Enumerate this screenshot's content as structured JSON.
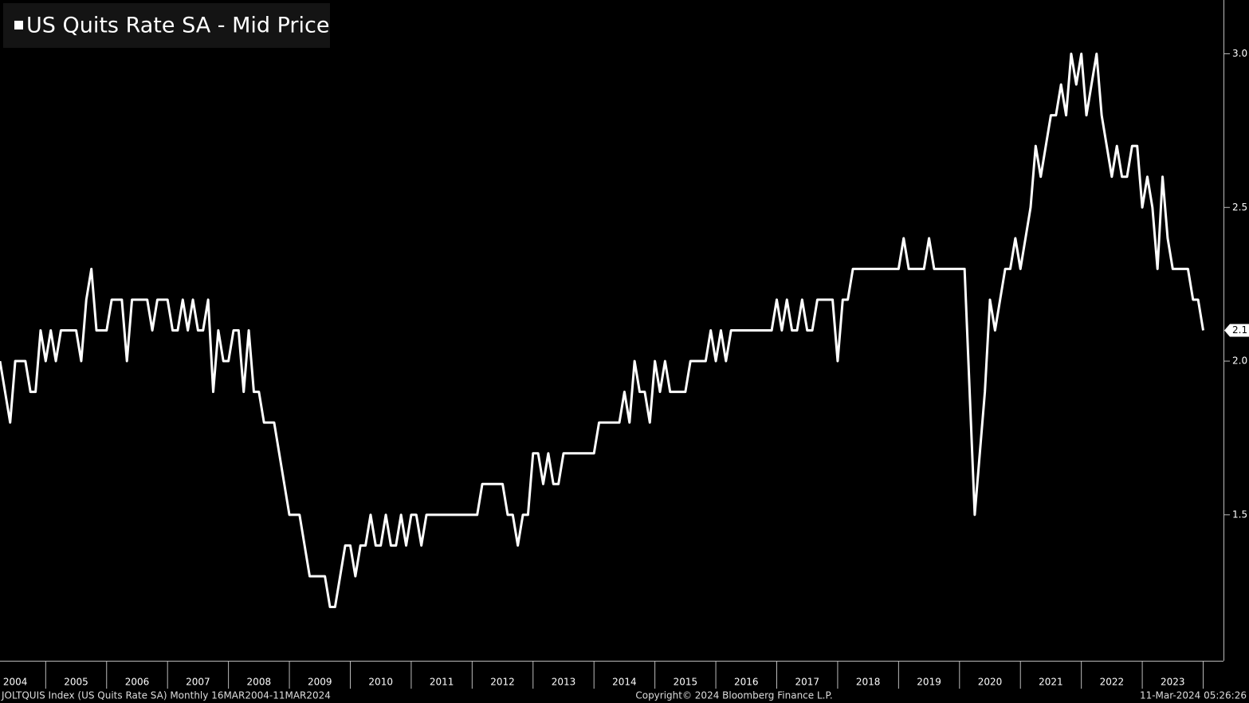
{
  "chart_data": {
    "type": "line",
    "title": "US Quits Rate SA - Mid Price",
    "series": [
      {
        "name": "US Quits Rate SA - Mid Price",
        "color": "#ffffff",
        "values": [
          2.0,
          1.9,
          1.8,
          2.0,
          2.0,
          2.0,
          1.9,
          1.9,
          2.1,
          2.0,
          2.1,
          2.0,
          2.1,
          2.1,
          2.1,
          2.1,
          2.0,
          2.2,
          2.3,
          2.1,
          2.1,
          2.1,
          2.2,
          2.2,
          2.2,
          2.0,
          2.2,
          2.2,
          2.2,
          2.2,
          2.1,
          2.2,
          2.2,
          2.2,
          2.1,
          2.1,
          2.2,
          2.1,
          2.2,
          2.1,
          2.1,
          2.2,
          1.9,
          2.1,
          2.0,
          2.0,
          2.1,
          2.1,
          1.9,
          2.1,
          1.9,
          1.9,
          1.8,
          1.8,
          1.8,
          1.7,
          1.6,
          1.5,
          1.5,
          1.5,
          1.4,
          1.3,
          1.3,
          1.3,
          1.3,
          1.2,
          1.2,
          1.3,
          1.4,
          1.4,
          1.3,
          1.4,
          1.4,
          1.5,
          1.4,
          1.4,
          1.5,
          1.4,
          1.4,
          1.5,
          1.4,
          1.5,
          1.5,
          1.4,
          1.5,
          1.5,
          1.5,
          1.5,
          1.5,
          1.5,
          1.5,
          1.5,
          1.5,
          1.5,
          1.5,
          1.6,
          1.6,
          1.6,
          1.6,
          1.6,
          1.5,
          1.5,
          1.4,
          1.5,
          1.5,
          1.7,
          1.7,
          1.6,
          1.7,
          1.6,
          1.6,
          1.7,
          1.7,
          1.7,
          1.7,
          1.7,
          1.7,
          1.7,
          1.8,
          1.8,
          1.8,
          1.8,
          1.8,
          1.9,
          1.8,
          2.0,
          1.9,
          1.9,
          1.8,
          2.0,
          1.9,
          2.0,
          1.9,
          1.9,
          1.9,
          1.9,
          2.0,
          2.0,
          2.0,
          2.0,
          2.1,
          2.0,
          2.1,
          2.0,
          2.1,
          2.1,
          2.1,
          2.1,
          2.1,
          2.1,
          2.1,
          2.1,
          2.1,
          2.2,
          2.1,
          2.2,
          2.1,
          2.1,
          2.2,
          2.1,
          2.1,
          2.2,
          2.2,
          2.2,
          2.2,
          2.0,
          2.2,
          2.2,
          2.3,
          2.3,
          2.3,
          2.3,
          2.3,
          2.3,
          2.3,
          2.3,
          2.3,
          2.3,
          2.4,
          2.3,
          2.3,
          2.3,
          2.3,
          2.4,
          2.3,
          2.3,
          2.3,
          2.3,
          2.3,
          2.3,
          2.3,
          1.9,
          1.5,
          1.7,
          1.9,
          2.2,
          2.1,
          2.2,
          2.3,
          2.3,
          2.4,
          2.3,
          2.4,
          2.5,
          2.7,
          2.6,
          2.7,
          2.8,
          2.8,
          2.9,
          2.8,
          3.0,
          2.9,
          3.0,
          2.8,
          2.9,
          3.0,
          2.8,
          2.7,
          2.6,
          2.7,
          2.6,
          2.6,
          2.7,
          2.7,
          2.5,
          2.6,
          2.5,
          2.3,
          2.6,
          2.4,
          2.3,
          2.3,
          2.3,
          2.3,
          2.2,
          2.2,
          2.1
        ]
      }
    ],
    "x": [
      "2004-04",
      "2004-05",
      "2004-06",
      "2004-07",
      "2004-08",
      "2004-09",
      "2004-10",
      "2004-11",
      "2004-12",
      "2005-01",
      "2005-02",
      "2005-03",
      "2005-04",
      "2005-05",
      "2005-06",
      "2005-07",
      "2005-08",
      "2005-09",
      "2005-10",
      "2005-11",
      "2005-12",
      "2006-01",
      "2006-02",
      "2006-03",
      "2006-04",
      "2006-05",
      "2006-06",
      "2006-07",
      "2006-08",
      "2006-09",
      "2006-10",
      "2006-11",
      "2006-12",
      "2007-01",
      "2007-02",
      "2007-03",
      "2007-04",
      "2007-05",
      "2007-06",
      "2007-07",
      "2007-08",
      "2007-09",
      "2007-10",
      "2007-11",
      "2007-12",
      "2008-01",
      "2008-02",
      "2008-03",
      "2008-04",
      "2008-05",
      "2008-06",
      "2008-07",
      "2008-08",
      "2008-09",
      "2008-10",
      "2008-11",
      "2008-12",
      "2009-01",
      "2009-02",
      "2009-03",
      "2009-04",
      "2009-05",
      "2009-06",
      "2009-07",
      "2009-08",
      "2009-09",
      "2009-10",
      "2009-11",
      "2009-12",
      "2010-01",
      "2010-02",
      "2010-03",
      "2010-04",
      "2010-05",
      "2010-06",
      "2010-07",
      "2010-08",
      "2010-09",
      "2010-10",
      "2010-11",
      "2010-12",
      "2011-01",
      "2011-02",
      "2011-03",
      "2011-04",
      "2011-05",
      "2011-06",
      "2011-07",
      "2011-08",
      "2011-09",
      "2011-10",
      "2011-11",
      "2011-12",
      "2012-01",
      "2012-02",
      "2012-03",
      "2012-04",
      "2012-05",
      "2012-06",
      "2012-07",
      "2012-08",
      "2012-09",
      "2012-10",
      "2012-11",
      "2012-12",
      "2013-01",
      "2013-02",
      "2013-03",
      "2013-04",
      "2013-05",
      "2013-06",
      "2013-07",
      "2013-08",
      "2013-09",
      "2013-10",
      "2013-11",
      "2013-12",
      "2014-01",
      "2014-02",
      "2014-03",
      "2014-04",
      "2014-05",
      "2014-06",
      "2014-07",
      "2014-08",
      "2014-09",
      "2014-10",
      "2014-11",
      "2014-12",
      "2015-01",
      "2015-02",
      "2015-03",
      "2015-04",
      "2015-05",
      "2015-06",
      "2015-07",
      "2015-08",
      "2015-09",
      "2015-10",
      "2015-11",
      "2015-12",
      "2016-01",
      "2016-02",
      "2016-03",
      "2016-04",
      "2016-05",
      "2016-06",
      "2016-07",
      "2016-08",
      "2016-09",
      "2016-10",
      "2016-11",
      "2016-12",
      "2017-01",
      "2017-02",
      "2017-03",
      "2017-04",
      "2017-05",
      "2017-06",
      "2017-07",
      "2017-08",
      "2017-09",
      "2017-10",
      "2017-11",
      "2017-12",
      "2018-01",
      "2018-02",
      "2018-03",
      "2018-04",
      "2018-05",
      "2018-06",
      "2018-07",
      "2018-08",
      "2018-09",
      "2018-10",
      "2018-11",
      "2018-12",
      "2019-01",
      "2019-02",
      "2019-03",
      "2019-04",
      "2019-05",
      "2019-06",
      "2019-07",
      "2019-08",
      "2019-09",
      "2019-10",
      "2019-11",
      "2019-12",
      "2020-01",
      "2020-02",
      "2020-03",
      "2020-04",
      "2020-05",
      "2020-06",
      "2020-07",
      "2020-08",
      "2020-09",
      "2020-10",
      "2020-11",
      "2020-12",
      "2021-01",
      "2021-02",
      "2021-03",
      "2021-04",
      "2021-05",
      "2021-06",
      "2021-07",
      "2021-08",
      "2021-09",
      "2021-10",
      "2021-11",
      "2021-12",
      "2022-01",
      "2022-02",
      "2022-03",
      "2022-04",
      "2022-05",
      "2022-06",
      "2022-07",
      "2022-08",
      "2022-09",
      "2022-10",
      "2022-11",
      "2022-12",
      "2023-01",
      "2023-02",
      "2023-03",
      "2023-04",
      "2023-05",
      "2023-06",
      "2023-07",
      "2023-08",
      "2023-09",
      "2023-10",
      "2023-11",
      "2023-12",
      "2024-01"
    ],
    "xlim": [
      "2004-04",
      "2024-05"
    ],
    "xticks": [
      2004,
      2005,
      2006,
      2007,
      2008,
      2009,
      2010,
      2011,
      2012,
      2013,
      2014,
      2015,
      2016,
      2017,
      2018,
      2019,
      2020,
      2021,
      2022,
      2023
    ],
    "ylim": [
      1.025,
      3.175
    ],
    "yticks": [
      1.5,
      {
        "value": 2.0,
        "label": "2.0"
      },
      {
        "value": 2.5,
        "label": "2.5"
      },
      {
        "value": 3.0,
        "label": "3.0"
      }
    ],
    "legend": "top-left",
    "footer": {
      "left": "JOLTQUIS Index (US Quits Rate SA)  Monthly 16MAR2004-11MAR2024",
      "center": "Copyright© 2024 Bloomberg Finance L.P.",
      "right": "11-Mar-2024 05:26:26"
    }
  }
}
